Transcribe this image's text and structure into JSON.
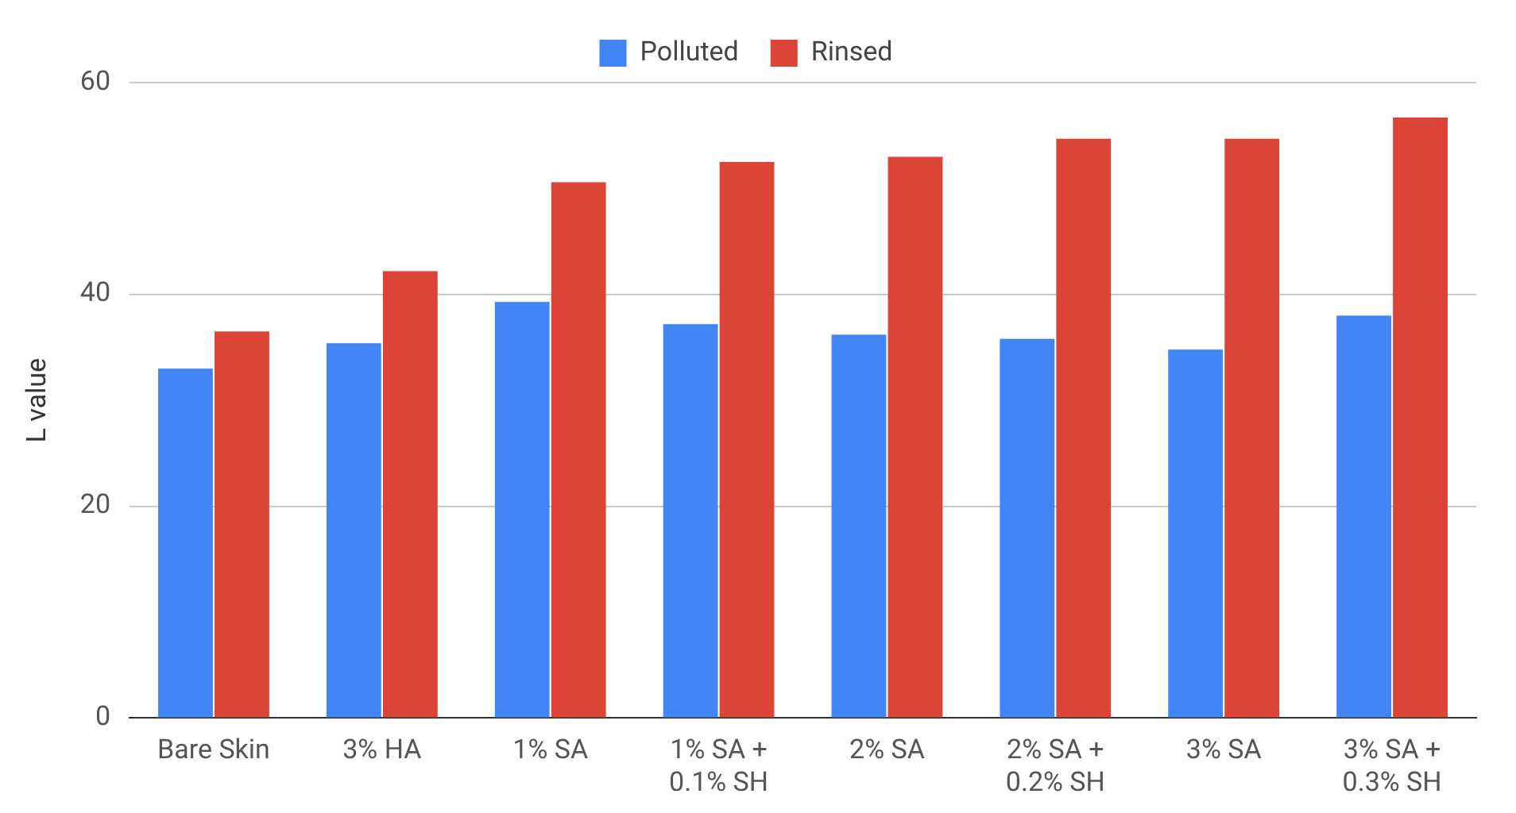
{
  "chart_data": {
    "type": "bar",
    "ylabel": "L value",
    "categories": [
      "Bare Skin",
      "3% HA",
      "1% SA",
      "1% SA + 0.1% SH",
      "2% SA",
      "2% SA + 0.2% SH",
      "3% SA",
      "3% SA + 0.3% SH"
    ],
    "series": [
      {
        "name": "Polluted",
        "color": "#4285f4",
        "values": [
          33.0,
          35.4,
          39.3,
          37.2,
          36.2,
          35.8,
          34.8,
          38.0
        ]
      },
      {
        "name": "Rinsed",
        "color": "#db4437",
        "values": [
          36.5,
          42.2,
          50.6,
          52.5,
          53.0,
          54.7,
          54.7,
          56.7
        ]
      }
    ],
    "ylim": [
      0,
      60
    ],
    "yticks": [
      0,
      20,
      40,
      60
    ],
    "grid": "y",
    "legend": "top"
  }
}
